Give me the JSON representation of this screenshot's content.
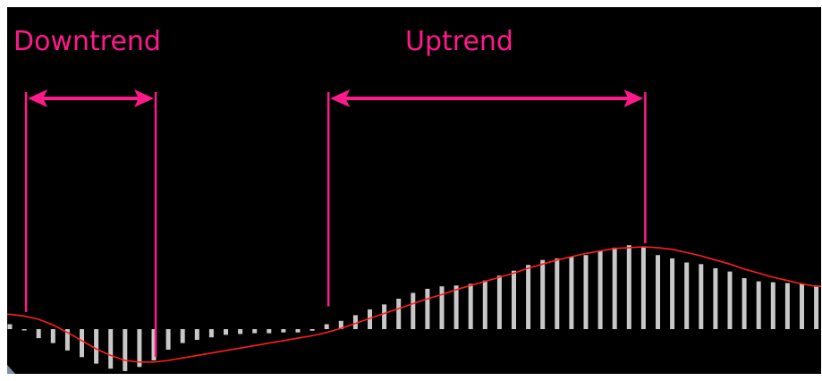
{
  "annotations": {
    "downtrend_label": "Downtrend",
    "uptrend_label": "Uptrend",
    "downtrend_range": [
      1,
      10
    ],
    "uptrend_range": [
      22,
      44
    ]
  },
  "colors": {
    "background": "#000000",
    "histogram": "#c8c8c8",
    "signal_line": "#ff1e1e",
    "annotation": "#ff1a8c",
    "border": "#ffffff"
  },
  "chart_data": {
    "type": "bar",
    "indicator": "histogram-with-signal-line",
    "x": [
      0,
      1,
      2,
      3,
      4,
      5,
      6,
      7,
      8,
      9,
      10,
      11,
      12,
      13,
      14,
      15,
      16,
      17,
      18,
      19,
      20,
      21,
      22,
      23,
      24,
      25,
      26,
      27,
      28,
      29,
      30,
      31,
      32,
      33,
      34,
      35,
      36,
      37,
      38,
      39,
      40,
      41,
      42,
      43,
      44,
      45,
      46,
      47,
      48,
      49,
      50,
      51,
      52,
      53,
      54,
      55,
      56
    ],
    "values": [
      0.6,
      -0.1,
      -1.1,
      -1.7,
      -2.6,
      -3.4,
      -4.2,
      -4.8,
      -5.1,
      -4.6,
      -3.8,
      -2.5,
      -1.7,
      -1.3,
      -1.0,
      -0.7,
      -0.6,
      -0.5,
      -0.5,
      -0.4,
      -0.4,
      -0.2,
      0.6,
      1.0,
      1.7,
      2.4,
      3.0,
      3.7,
      4.4,
      4.9,
      5.2,
      5.3,
      5.5,
      5.9,
      6.5,
      7.1,
      7.8,
      8.4,
      8.6,
      8.8,
      9.0,
      9.5,
      9.9,
      10.2,
      10.0,
      9.0,
      8.6,
      8.1,
      7.9,
      7.4,
      7.0,
      6.2,
      5.8,
      5.7,
      5.6,
      5.5,
      5.3
    ],
    "signal": [
      1.8,
      1.6,
      1.2,
      0.5,
      -0.4,
      -1.4,
      -2.4,
      -3.2,
      -3.8,
      -4.0,
      -4.0,
      -3.8,
      -3.5,
      -3.2,
      -2.9,
      -2.6,
      -2.3,
      -2.0,
      -1.7,
      -1.4,
      -1.1,
      -0.8,
      -0.4,
      0.1,
      0.7,
      1.3,
      1.9,
      2.5,
      3.1,
      3.7,
      4.2,
      4.8,
      5.3,
      5.8,
      6.3,
      6.8,
      7.4,
      7.9,
      8.4,
      8.8,
      9.2,
      9.5,
      9.8,
      9.9,
      10.0,
      9.9,
      9.7,
      9.3,
      8.9,
      8.4,
      7.9,
      7.3,
      6.8,
      6.3,
      5.9,
      5.5,
      5.2
    ],
    "ylim": [
      -10.5,
      24
    ],
    "grid": false
  }
}
